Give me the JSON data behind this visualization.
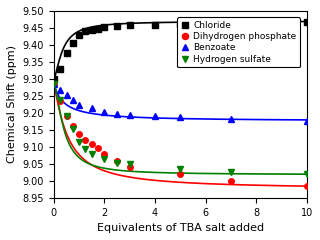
{
  "title": "",
  "xlabel": "Equivalents of TBA salt added",
  "ylabel": "Chemical Shift (ppm)",
  "xlim": [
    0,
    10
  ],
  "ylim": [
    8.95,
    9.5
  ],
  "yticks": [
    8.95,
    9.0,
    9.05,
    9.1,
    9.15,
    9.2,
    9.25,
    9.3,
    9.35,
    9.4,
    9.45,
    9.5
  ],
  "xticks": [
    0,
    2,
    4,
    6,
    8,
    10
  ],
  "series": [
    {
      "label": "Chloride",
      "color": "black",
      "marker": "s",
      "x": [
        0,
        0.25,
        0.5,
        0.75,
        1.0,
        1.25,
        1.5,
        1.75,
        2.0,
        2.5,
        3.0,
        4.0,
        5.0,
        7.0,
        10.0
      ],
      "y": [
        9.3,
        9.33,
        9.375,
        9.405,
        9.43,
        9.44,
        9.445,
        9.448,
        9.452,
        9.455,
        9.458,
        9.46,
        9.462,
        9.465,
        9.467
      ],
      "fit_type": "hill_up",
      "y0": 9.3,
      "ymax": 9.47,
      "k": 0.35,
      "n": 1.5
    },
    {
      "label": "Dihydrogen phosphate",
      "color": "red",
      "marker": "o",
      "x": [
        0,
        0.25,
        0.5,
        0.75,
        1.0,
        1.25,
        1.5,
        1.75,
        2.0,
        2.5,
        3.0,
        5.0,
        7.0,
        10.0
      ],
      "y": [
        9.285,
        9.235,
        9.19,
        9.16,
        9.138,
        9.12,
        9.108,
        9.098,
        9.078,
        9.058,
        9.04,
        9.02,
        8.999,
        8.984
      ],
      "fit_type": "hill_down",
      "y0": 9.285,
      "ymin": 8.975,
      "k": 0.55,
      "n": 1.2
    },
    {
      "label": "Benzoate",
      "color": "blue",
      "marker": "^",
      "x": [
        0,
        0.25,
        0.5,
        0.75,
        1.0,
        1.5,
        2.0,
        2.5,
        3.0,
        4.0,
        5.0,
        7.0,
        10.0
      ],
      "y": [
        9.285,
        9.268,
        9.252,
        9.238,
        9.224,
        9.213,
        9.203,
        9.197,
        9.193,
        9.19,
        9.188,
        9.182,
        9.177
      ],
      "fit_type": "hill_down",
      "y0": 9.285,
      "ymin": 9.175,
      "k": 0.4,
      "n": 1.0
    },
    {
      "label": "Hydrogen sulfate",
      "color": "green",
      "marker": "v",
      "x": [
        0,
        0.25,
        0.5,
        0.75,
        1.0,
        1.25,
        1.5,
        2.0,
        2.5,
        3.0,
        5.0,
        7.0,
        10.0
      ],
      "y": [
        9.285,
        9.238,
        9.192,
        9.152,
        9.115,
        9.095,
        9.08,
        9.063,
        9.053,
        9.048,
        9.035,
        9.026,
        9.02
      ],
      "fit_type": "hill_down",
      "y0": 9.285,
      "ymin": 9.018,
      "k": 0.4,
      "n": 1.6
    }
  ],
  "legend_loc": "upper right",
  "markersize": 4,
  "linewidth": 1.2,
  "tick_fontsize": 7,
  "label_fontsize": 8
}
